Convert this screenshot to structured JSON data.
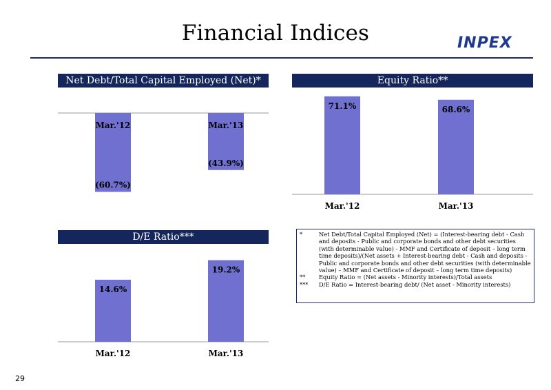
{
  "page_title": "Financial Indices",
  "logo_text": "INPEX",
  "page_number": "29",
  "colors": {
    "header_bg": "#14265c",
    "bar": "#7070d0",
    "logo": "#1e3a8f"
  },
  "chart_data": [
    {
      "type": "bar",
      "title": "Net Debt/Total Capital Employed (Net)*",
      "categories": [
        "Mar.'12",
        "Mar.'13"
      ],
      "values": [
        -60.7,
        -43.9
      ],
      "value_labels": [
        "(60.7%)",
        "(43.9%)"
      ],
      "ylim": [
        -70,
        0
      ]
    },
    {
      "type": "bar",
      "title": "Equity Ratio**",
      "categories": [
        "Mar.'12",
        "Mar.'13"
      ],
      "values": [
        71.1,
        68.6
      ],
      "value_labels": [
        "71.1%",
        "68.6%"
      ],
      "ylim": [
        0,
        80
      ]
    },
    {
      "type": "bar",
      "title": "D/E Ratio***",
      "categories": [
        "Mar.'12",
        "Mar.'13"
      ],
      "values": [
        14.6,
        19.2
      ],
      "value_labels": [
        "14.6%",
        "19.2%"
      ],
      "ylim": [
        0,
        24
      ]
    }
  ],
  "notes": [
    {
      "mark": "*",
      "text": "Net Debt/Total Capital Employed (Net) = (Interest-bearing debt - Cash and deposits - Public and corporate bonds and other debt securities (with determinable value) - MMF and Certificate of deposit – long term time deposits)/(Net assets + Interest-bearing debt - Cash and deposits - Public and corporate bonds and other debt securities (with determinable value) – MMF and Certificate of deposit – long term time deposits)"
    },
    {
      "mark": "**",
      "text": "Equity Ratio = (Net assets - Minority interests)/Total assets"
    },
    {
      "mark": "***",
      "text": "D/E Ratio = Interest-bearing debt/ (Net asset - Minority interests)"
    }
  ]
}
